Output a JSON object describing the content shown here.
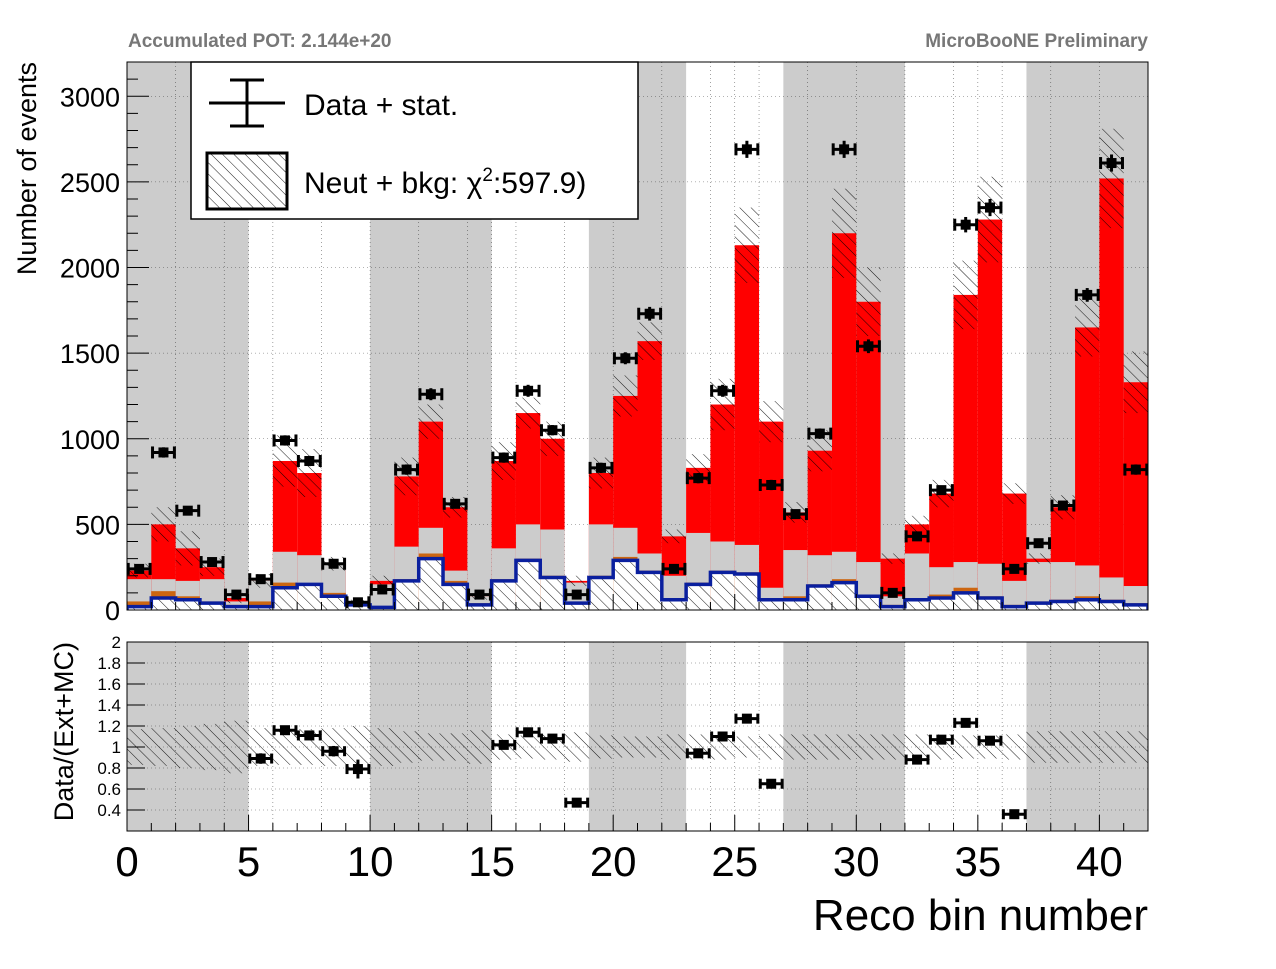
{
  "header": {
    "pot_label": "Accumulated POT: 2.144e+20",
    "preliminary_label": "MicroBooNE Preliminary"
  },
  "legend": {
    "data_label": "Data + stat.",
    "mc_label_prefix": "Neut + bkg: χ",
    "mc_label_sup": "2",
    "mc_label_suffix": ":597.9)"
  },
  "colors": {
    "signal": "#ff0000",
    "background_gray": "#cccccc",
    "orange": "#cc6611",
    "blue_line": "#0a1f9e",
    "band_gray": "#cccccc"
  },
  "chart_data": [
    {
      "type": "bar",
      "subtype": "stacked-histogram-with-data-points",
      "ylabel": "Number of events",
      "xlim": [
        0,
        42
      ],
      "ylim": [
        0,
        3200
      ],
      "yticks": [
        0,
        500,
        1000,
        1500,
        2000,
        2500,
        3000
      ],
      "shaded_x_ranges": [
        [
          0,
          5
        ],
        [
          10,
          15
        ],
        [
          19,
          23
        ],
        [
          27,
          32
        ],
        [
          37,
          42
        ]
      ],
      "bins": [
        0,
        1,
        2,
        3,
        4,
        5,
        6,
        7,
        8,
        9,
        10,
        11,
        12,
        13,
        14,
        15,
        16,
        17,
        18,
        19,
        20,
        21,
        22,
        23,
        24,
        25,
        26,
        27,
        28,
        29,
        30,
        31,
        32,
        33,
        34,
        35,
        36,
        37,
        38,
        39,
        40,
        41
      ],
      "series": [
        {
          "name": "blue",
          "values": [
            20,
            70,
            60,
            40,
            20,
            20,
            130,
            150,
            80,
            30,
            15,
            170,
            300,
            150,
            30,
            170,
            290,
            190,
            40,
            190,
            290,
            220,
            60,
            150,
            220,
            210,
            60,
            60,
            140,
            160,
            80,
            20,
            60,
            70,
            100,
            70,
            20,
            40,
            50,
            60,
            50,
            30
          ]
        },
        {
          "name": "orange",
          "values": [
            50,
            110,
            80,
            50,
            30,
            50,
            160,
            150,
            100,
            40,
            20,
            180,
            330,
            170,
            40,
            180,
            300,
            200,
            40,
            200,
            310,
            230,
            70,
            160,
            230,
            220,
            70,
            80,
            150,
            180,
            90,
            30,
            70,
            90,
            130,
            80,
            30,
            50,
            60,
            80,
            60,
            40
          ]
        },
        {
          "name": "gray",
          "values": [
            180,
            180,
            170,
            180,
            50,
            170,
            340,
            320,
            270,
            40,
            150,
            370,
            480,
            230,
            80,
            360,
            500,
            470,
            160,
            500,
            480,
            330,
            200,
            450,
            400,
            380,
            130,
            350,
            320,
            340,
            280,
            80,
            330,
            250,
            280,
            270,
            170,
            280,
            280,
            260,
            190,
            140
          ]
        },
        {
          "name": "red",
          "values": [
            230,
            500,
            360,
            250,
            70,
            170,
            870,
            800,
            270,
            40,
            170,
            780,
            1100,
            600,
            80,
            870,
            1150,
            1000,
            170,
            800,
            1250,
            1570,
            430,
            830,
            1200,
            2130,
            1100,
            570,
            930,
            2200,
            1800,
            300,
            500,
            680,
            1840,
            2280,
            680,
            300,
            600,
            1650,
            2520,
            1330
          ]
        }
      ],
      "mc_uncertainty": [
        40,
        100,
        100,
        50,
        30,
        40,
        150,
        140,
        40,
        20,
        30,
        110,
        100,
        60,
        20,
        110,
        90,
        100,
        30,
        90,
        120,
        110,
        40,
        80,
        150,
        220,
        120,
        60,
        120,
        260,
        200,
        30,
        50,
        80,
        200,
        250,
        60,
        30,
        70,
        170,
        290,
        180
      ],
      "data": [
        240,
        920,
        580,
        280,
        90,
        180,
        990,
        870,
        270,
        45,
        120,
        820,
        1260,
        620,
        90,
        890,
        1280,
        1050,
        90,
        830,
        1470,
        1730,
        240,
        770,
        1280,
        2690,
        730,
        560,
        1030,
        2690,
        1540,
        100,
        430,
        700,
        2250,
        2350,
        240,
        390,
        610,
        1840,
        2610,
        820
      ],
      "data_err": [
        20,
        30,
        25,
        20,
        15,
        15,
        30,
        30,
        20,
        10,
        15,
        30,
        35,
        25,
        15,
        30,
        35,
        30,
        15,
        30,
        35,
        40,
        20,
        30,
        35,
        50,
        30,
        25,
        30,
        50,
        40,
        15,
        20,
        25,
        45,
        50,
        20,
        20,
        25,
        40,
        50,
        30
      ]
    },
    {
      "type": "scatter",
      "subtype": "ratio",
      "xlabel": "Reco bin number",
      "ylabel": "Data/(Ext+MC)",
      "xlim": [
        0,
        42
      ],
      "ylim": [
        0.2,
        2
      ],
      "yticks": [
        0.4,
        0.6,
        0.8,
        1,
        1.2,
        1.4,
        1.6,
        1.8,
        2
      ],
      "ytick_labels": [
        "0.4",
        "0.6",
        "0.8",
        "1",
        "1.2",
        "1.4",
        "1.6",
        "1.8",
        "2"
      ],
      "xticks": [
        0,
        5,
        10,
        15,
        20,
        25,
        30,
        35,
        40
      ],
      "band_half_width": [
        0.17,
        0.18,
        0.2,
        0.22,
        0.25,
        0.18,
        0.17,
        0.17,
        0.18,
        0.2,
        0.18,
        0.15,
        0.13,
        0.13,
        0.16,
        0.12,
        0.11,
        0.12,
        0.14,
        0.11,
        0.1,
        0.1,
        0.12,
        0.12,
        0.12,
        0.1,
        0.12,
        0.12,
        0.12,
        0.12,
        0.12,
        0.12,
        0.12,
        0.12,
        0.11,
        0.11,
        0.12,
        0.15,
        0.15,
        0.15,
        0.15,
        0.15
      ],
      "points": [
        {
          "x": 5.5,
          "y": 0.89,
          "err": 0.05
        },
        {
          "x": 6.5,
          "y": 1.16,
          "err": 0.04
        },
        {
          "x": 7.5,
          "y": 1.11,
          "err": 0.04
        },
        {
          "x": 8.5,
          "y": 0.96,
          "err": 0.05
        },
        {
          "x": 9.5,
          "y": 0.79,
          "err": 0.09
        },
        {
          "x": 15.5,
          "y": 1.02,
          "err": 0.04
        },
        {
          "x": 16.5,
          "y": 1.14,
          "err": 0.03
        },
        {
          "x": 17.5,
          "y": 1.08,
          "err": 0.03
        },
        {
          "x": 18.5,
          "y": 0.47,
          "err": 0.04
        },
        {
          "x": 23.5,
          "y": 0.94,
          "err": 0.03
        },
        {
          "x": 24.5,
          "y": 1.1,
          "err": 0.03
        },
        {
          "x": 25.5,
          "y": 1.27,
          "err": 0.02
        },
        {
          "x": 26.5,
          "y": 0.65,
          "err": 0.03
        },
        {
          "x": 32.5,
          "y": 0.88,
          "err": 0.04
        },
        {
          "x": 33.5,
          "y": 1.07,
          "err": 0.03
        },
        {
          "x": 34.5,
          "y": 1.23,
          "err": 0.03
        },
        {
          "x": 35.5,
          "y": 1.06,
          "err": 0.03
        },
        {
          "x": 36.5,
          "y": 0.36,
          "err": 0.03
        }
      ]
    }
  ]
}
